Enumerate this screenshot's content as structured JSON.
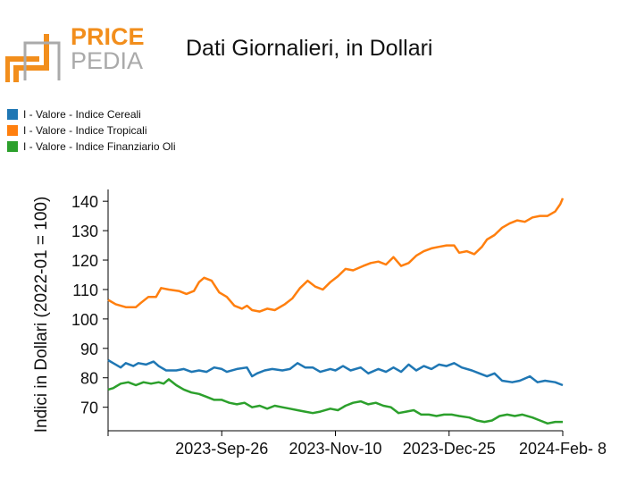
{
  "logo": {
    "line1": "PRICE",
    "line2": "PEDIA",
    "accent_color": "#f28e1c",
    "gray_color": "#aaaaaa"
  },
  "chart_data": {
    "type": "line",
    "title": "Dati Giornalieri, in Dollari",
    "ylabel": "Indici in Dollari (2022-01 = 100)",
    "xlabel": "",
    "x_range": [
      "2023-08-12",
      "2024-02-08"
    ],
    "x_ticks": [
      "2023-Sep-26",
      "2023-Nov-10",
      "2023-Dec-25",
      "2024-Feb- 8"
    ],
    "ylim": [
      62,
      144
    ],
    "y_ticks": [
      70,
      80,
      90,
      100,
      110,
      120,
      130,
      140
    ],
    "legend_position": "top-left",
    "grid": false,
    "series": [
      {
        "name": "I - Valore - Indice Cereali",
        "color": "#1f77b4",
        "points": [
          [
            "2023-08-12",
            86.0
          ],
          [
            "2023-08-14",
            85.0
          ],
          [
            "2023-08-17",
            83.5
          ],
          [
            "2023-08-19",
            85.0
          ],
          [
            "2023-08-22",
            84.0
          ],
          [
            "2023-08-24",
            85.0
          ],
          [
            "2023-08-27",
            84.5
          ],
          [
            "2023-08-30",
            85.5
          ],
          [
            "2023-09-01",
            84.0
          ],
          [
            "2023-09-04",
            82.5
          ],
          [
            "2023-09-08",
            82.5
          ],
          [
            "2023-09-11",
            83.0
          ],
          [
            "2023-09-14",
            82.0
          ],
          [
            "2023-09-17",
            82.5
          ],
          [
            "2023-09-20",
            82.0
          ],
          [
            "2023-09-23",
            83.5
          ],
          [
            "2023-09-26",
            83.0
          ],
          [
            "2023-09-28",
            82.0
          ],
          [
            "2023-10-02",
            83.0
          ],
          [
            "2023-10-06",
            83.5
          ],
          [
            "2023-10-08",
            80.5
          ],
          [
            "2023-10-10",
            81.5
          ],
          [
            "2023-10-13",
            82.5
          ],
          [
            "2023-10-16",
            83.0
          ],
          [
            "2023-10-20",
            82.5
          ],
          [
            "2023-10-23",
            83.0
          ],
          [
            "2023-10-26",
            85.0
          ],
          [
            "2023-10-29",
            83.5
          ],
          [
            "2023-11-01",
            83.5
          ],
          [
            "2023-11-04",
            82.0
          ],
          [
            "2023-11-08",
            83.0
          ],
          [
            "2023-11-10",
            82.5
          ],
          [
            "2023-11-13",
            84.0
          ],
          [
            "2023-11-16",
            82.5
          ],
          [
            "2023-11-20",
            83.5
          ],
          [
            "2023-11-23",
            81.5
          ],
          [
            "2023-11-27",
            83.0
          ],
          [
            "2023-11-30",
            82.0
          ],
          [
            "2023-12-03",
            83.5
          ],
          [
            "2023-12-06",
            82.0
          ],
          [
            "2023-12-09",
            84.5
          ],
          [
            "2023-12-12",
            82.5
          ],
          [
            "2023-12-15",
            84.0
          ],
          [
            "2023-12-18",
            83.0
          ],
          [
            "2023-12-21",
            84.5
          ],
          [
            "2023-12-24",
            84.0
          ],
          [
            "2023-12-27",
            85.0
          ],
          [
            "2023-12-30",
            83.5
          ],
          [
            "2024-01-03",
            82.5
          ],
          [
            "2024-01-06",
            81.5
          ],
          [
            "2024-01-09",
            80.5
          ],
          [
            "2024-01-12",
            81.5
          ],
          [
            "2024-01-15",
            79.0
          ],
          [
            "2024-01-19",
            78.5
          ],
          [
            "2024-01-22",
            79.0
          ],
          [
            "2024-01-26",
            80.5
          ],
          [
            "2024-01-29",
            78.5
          ],
          [
            "2024-02-01",
            79.0
          ],
          [
            "2024-02-05",
            78.5
          ],
          [
            "2024-02-08",
            77.5
          ]
        ]
      },
      {
        "name": "I - Valore - Indice Tropicali",
        "color": "#ff7f0e",
        "points": [
          [
            "2023-08-12",
            106.5
          ],
          [
            "2023-08-15",
            105.0
          ],
          [
            "2023-08-19",
            104.0
          ],
          [
            "2023-08-23",
            104.0
          ],
          [
            "2023-08-25",
            105.5
          ],
          [
            "2023-08-28",
            107.5
          ],
          [
            "2023-08-31",
            107.5
          ],
          [
            "2023-09-02",
            110.5
          ],
          [
            "2023-09-05",
            110.0
          ],
          [
            "2023-09-09",
            109.5
          ],
          [
            "2023-09-12",
            108.5
          ],
          [
            "2023-09-15",
            109.5
          ],
          [
            "2023-09-17",
            112.5
          ],
          [
            "2023-09-19",
            114.0
          ],
          [
            "2023-09-22",
            113.0
          ],
          [
            "2023-09-25",
            109.0
          ],
          [
            "2023-09-28",
            107.5
          ],
          [
            "2023-10-01",
            104.5
          ],
          [
            "2023-10-04",
            103.5
          ],
          [
            "2023-10-06",
            104.5
          ],
          [
            "2023-10-08",
            103.0
          ],
          [
            "2023-10-11",
            102.5
          ],
          [
            "2023-10-14",
            103.5
          ],
          [
            "2023-10-17",
            103.0
          ],
          [
            "2023-10-21",
            105.0
          ],
          [
            "2023-10-24",
            107.0
          ],
          [
            "2023-10-27",
            110.5
          ],
          [
            "2023-10-30",
            113.0
          ],
          [
            "2023-11-02",
            111.0
          ],
          [
            "2023-11-05",
            110.0
          ],
          [
            "2023-11-08",
            112.5
          ],
          [
            "2023-11-11",
            114.5
          ],
          [
            "2023-11-14",
            117.0
          ],
          [
            "2023-11-17",
            116.5
          ],
          [
            "2023-11-21",
            118.0
          ],
          [
            "2023-11-24",
            119.0
          ],
          [
            "2023-11-27",
            119.5
          ],
          [
            "2023-11-30",
            118.5
          ],
          [
            "2023-12-03",
            121.0
          ],
          [
            "2023-12-06",
            118.0
          ],
          [
            "2023-12-09",
            119.0
          ],
          [
            "2023-12-12",
            121.5
          ],
          [
            "2023-12-15",
            123.0
          ],
          [
            "2023-12-18",
            124.0
          ],
          [
            "2023-12-21",
            124.5
          ],
          [
            "2023-12-24",
            125.0
          ],
          [
            "2023-12-27",
            125.0
          ],
          [
            "2023-12-29",
            122.5
          ],
          [
            "2024-01-01",
            123.0
          ],
          [
            "2024-01-04",
            122.0
          ],
          [
            "2024-01-07",
            124.5
          ],
          [
            "2024-01-09",
            127.0
          ],
          [
            "2024-01-12",
            128.5
          ],
          [
            "2024-01-15",
            131.0
          ],
          [
            "2024-01-18",
            132.5
          ],
          [
            "2024-01-21",
            133.5
          ],
          [
            "2024-01-24",
            133.0
          ],
          [
            "2024-01-27",
            134.5
          ],
          [
            "2024-01-30",
            135.0
          ],
          [
            "2024-02-02",
            135.0
          ],
          [
            "2024-02-05",
            136.5
          ],
          [
            "2024-02-07",
            139.0
          ],
          [
            "2024-02-08",
            141.0
          ]
        ]
      },
      {
        "name": "I - Valore - Indice Finanziario Oli",
        "color": "#2ca02c",
        "points": [
          [
            "2023-08-12",
            76.0
          ],
          [
            "2023-08-14",
            76.5
          ],
          [
            "2023-08-17",
            78.0
          ],
          [
            "2023-08-20",
            78.5
          ],
          [
            "2023-08-23",
            77.5
          ],
          [
            "2023-08-26",
            78.5
          ],
          [
            "2023-08-29",
            78.0
          ],
          [
            "2023-09-01",
            78.5
          ],
          [
            "2023-09-03",
            78.0
          ],
          [
            "2023-09-05",
            79.5
          ],
          [
            "2023-09-08",
            77.5
          ],
          [
            "2023-09-11",
            76.0
          ],
          [
            "2023-09-14",
            75.0
          ],
          [
            "2023-09-17",
            74.5
          ],
          [
            "2023-09-20",
            73.5
          ],
          [
            "2023-09-23",
            72.5
          ],
          [
            "2023-09-26",
            72.5
          ],
          [
            "2023-09-29",
            71.5
          ],
          [
            "2023-10-02",
            71.0
          ],
          [
            "2023-10-05",
            71.5
          ],
          [
            "2023-10-08",
            70.0
          ],
          [
            "2023-10-11",
            70.5
          ],
          [
            "2023-10-14",
            69.5
          ],
          [
            "2023-10-17",
            70.5
          ],
          [
            "2023-10-20",
            70.0
          ],
          [
            "2023-10-23",
            69.5
          ],
          [
            "2023-10-26",
            69.0
          ],
          [
            "2023-10-29",
            68.5
          ],
          [
            "2023-11-01",
            68.0
          ],
          [
            "2023-11-04",
            68.5
          ],
          [
            "2023-11-08",
            69.5
          ],
          [
            "2023-11-11",
            69.0
          ],
          [
            "2023-11-14",
            70.5
          ],
          [
            "2023-11-17",
            71.5
          ],
          [
            "2023-11-20",
            72.0
          ],
          [
            "2023-11-23",
            71.0
          ],
          [
            "2023-11-26",
            71.5
          ],
          [
            "2023-11-29",
            70.5
          ],
          [
            "2023-12-02",
            70.0
          ],
          [
            "2023-12-05",
            68.0
          ],
          [
            "2023-12-08",
            68.5
          ],
          [
            "2023-12-11",
            69.0
          ],
          [
            "2023-12-14",
            67.5
          ],
          [
            "2023-12-17",
            67.5
          ],
          [
            "2023-12-20",
            67.0
          ],
          [
            "2023-12-23",
            67.5
          ],
          [
            "2023-12-26",
            67.5
          ],
          [
            "2023-12-29",
            67.0
          ],
          [
            "2024-01-02",
            66.5
          ],
          [
            "2024-01-05",
            65.5
          ],
          [
            "2024-01-08",
            65.0
          ],
          [
            "2024-01-11",
            65.5
          ],
          [
            "2024-01-14",
            67.0
          ],
          [
            "2024-01-17",
            67.5
          ],
          [
            "2024-01-20",
            67.0
          ],
          [
            "2024-01-23",
            67.5
          ],
          [
            "2024-01-27",
            66.5
          ],
          [
            "2024-01-30",
            65.5
          ],
          [
            "2024-02-02",
            64.5
          ],
          [
            "2024-02-05",
            65.0
          ],
          [
            "2024-02-08",
            65.0
          ]
        ]
      }
    ]
  }
}
